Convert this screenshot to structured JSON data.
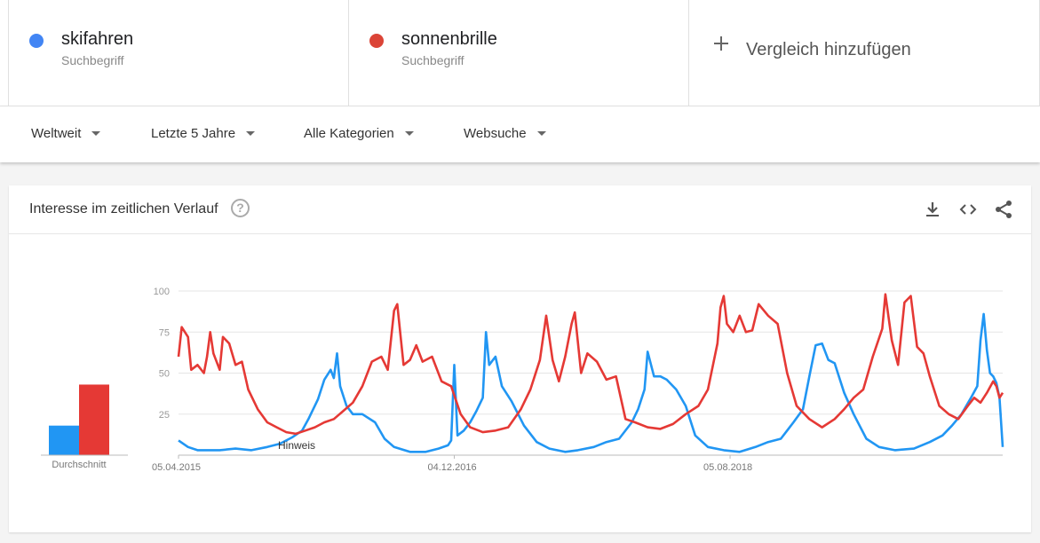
{
  "terms": [
    {
      "name": "skifahren",
      "sub": "Suchbegriff",
      "color": "#4285f4"
    },
    {
      "name": "sonnenbrille",
      "sub": "Suchbegriff",
      "color": "#db4437"
    }
  ],
  "add_compare": "Vergleich hinzufügen",
  "filters": {
    "region": "Weltweit",
    "time": "Letzte 5 Jahre",
    "category": "Alle Kategorien",
    "search_type": "Websuche"
  },
  "card": {
    "title": "Interesse im zeitlichen Verlauf",
    "help_glyph": "?",
    "icons": [
      "download-icon",
      "embed-icon",
      "share-icon"
    ]
  },
  "chart_data": {
    "type": "line",
    "title": "",
    "xlabel": "",
    "ylabel": "",
    "ylim": [
      0,
      100
    ],
    "yticks": [
      25,
      50,
      75,
      100
    ],
    "ytick_labels": [
      "25",
      "50",
      "75",
      "100"
    ],
    "x_tick_labels": [
      "05.04.2015",
      "04.12.2016",
      "05.08.2018"
    ],
    "x_tick_dates": [
      "2015-04-05",
      "2016-12-04",
      "2018-08-05"
    ],
    "x_start": "2015-04-05",
    "x_end": "2020-03-29",
    "grid": true,
    "annotation": "Hinweis",
    "averages": {
      "label": "Durchschnitt",
      "values": [
        {
          "name": "skifahren",
          "value": 18
        },
        {
          "name": "sonnenbrille",
          "value": 43
        }
      ]
    },
    "series": [
      {
        "name": "skifahren",
        "color": "#2196f3",
        "points": [
          [
            "2015-04-05",
            9
          ],
          [
            "2015-04-26",
            5
          ],
          [
            "2015-05-17",
            3
          ],
          [
            "2015-07-05",
            3
          ],
          [
            "2015-08-09",
            4
          ],
          [
            "2015-09-13",
            3
          ],
          [
            "2015-10-18",
            5
          ],
          [
            "2015-11-15",
            7
          ],
          [
            "2015-12-13",
            11
          ],
          [
            "2016-01-03",
            15
          ],
          [
            "2016-01-17",
            22
          ],
          [
            "2016-02-07",
            34
          ],
          [
            "2016-02-21",
            46
          ],
          [
            "2016-03-06",
            52
          ],
          [
            "2016-03-13",
            47
          ],
          [
            "2016-03-20",
            62
          ],
          [
            "2016-03-27",
            42
          ],
          [
            "2016-04-10",
            30
          ],
          [
            "2016-04-24",
            25
          ],
          [
            "2016-05-15",
            25
          ],
          [
            "2016-06-12",
            20
          ],
          [
            "2016-07-03",
            10
          ],
          [
            "2016-07-24",
            5
          ],
          [
            "2016-08-28",
            2
          ],
          [
            "2016-10-02",
            2
          ],
          [
            "2016-10-30",
            4
          ],
          [
            "2016-11-20",
            6
          ],
          [
            "2016-11-27",
            9
          ],
          [
            "2016-12-04",
            55
          ],
          [
            "2016-12-11",
            12
          ],
          [
            "2016-12-25",
            15
          ],
          [
            "2017-01-08",
            20
          ],
          [
            "2017-01-22",
            27
          ],
          [
            "2017-02-05",
            35
          ],
          [
            "2017-02-12",
            75
          ],
          [
            "2017-02-19",
            55
          ],
          [
            "2017-03-05",
            60
          ],
          [
            "2017-03-19",
            42
          ],
          [
            "2017-04-09",
            33
          ],
          [
            "2017-05-07",
            18
          ],
          [
            "2017-06-04",
            8
          ],
          [
            "2017-07-02",
            4
          ],
          [
            "2017-08-06",
            2
          ],
          [
            "2017-09-03",
            3
          ],
          [
            "2017-10-08",
            5
          ],
          [
            "2017-11-05",
            8
          ],
          [
            "2017-12-03",
            10
          ],
          [
            "2017-12-31",
            20
          ],
          [
            "2018-01-14",
            28
          ],
          [
            "2018-01-28",
            40
          ],
          [
            "2018-02-04",
            63
          ],
          [
            "2018-02-18",
            48
          ],
          [
            "2018-03-04",
            48
          ],
          [
            "2018-03-18",
            46
          ],
          [
            "2018-04-08",
            40
          ],
          [
            "2018-04-29",
            30
          ],
          [
            "2018-05-20",
            12
          ],
          [
            "2018-06-17",
            5
          ],
          [
            "2018-07-22",
            3
          ],
          [
            "2018-08-26",
            2
          ],
          [
            "2018-09-30",
            5
          ],
          [
            "2018-10-28",
            8
          ],
          [
            "2018-11-25",
            10
          ],
          [
            "2018-12-23",
            20
          ],
          [
            "2019-01-13",
            28
          ],
          [
            "2019-01-27",
            48
          ],
          [
            "2019-02-10",
            67
          ],
          [
            "2019-02-24",
            68
          ],
          [
            "2019-03-10",
            58
          ],
          [
            "2019-03-24",
            56
          ],
          [
            "2019-04-14",
            38
          ],
          [
            "2019-05-05",
            25
          ],
          [
            "2019-06-02",
            10
          ],
          [
            "2019-06-30",
            5
          ],
          [
            "2019-08-04",
            3
          ],
          [
            "2019-09-15",
            4
          ],
          [
            "2019-10-20",
            8
          ],
          [
            "2019-11-17",
            12
          ],
          [
            "2019-12-08",
            18
          ],
          [
            "2019-12-29",
            25
          ],
          [
            "2020-01-19",
            35
          ],
          [
            "2020-02-02",
            42
          ],
          [
            "2020-02-09",
            70
          ],
          [
            "2020-02-16",
            86
          ],
          [
            "2020-02-23",
            64
          ],
          [
            "2020-03-01",
            50
          ],
          [
            "2020-03-08",
            48
          ],
          [
            "2020-03-15",
            44
          ],
          [
            "2020-03-22",
            35
          ],
          [
            "2020-03-29",
            5
          ]
        ]
      },
      {
        "name": "sonnenbrille",
        "color": "#e53935",
        "points": [
          [
            "2015-04-05",
            60
          ],
          [
            "2015-04-12",
            78
          ],
          [
            "2015-04-26",
            72
          ],
          [
            "2015-05-03",
            52
          ],
          [
            "2015-05-17",
            55
          ],
          [
            "2015-05-31",
            50
          ],
          [
            "2015-06-07",
            60
          ],
          [
            "2015-06-14",
            75
          ],
          [
            "2015-06-21",
            62
          ],
          [
            "2015-07-05",
            52
          ],
          [
            "2015-07-12",
            72
          ],
          [
            "2015-07-26",
            68
          ],
          [
            "2015-08-09",
            55
          ],
          [
            "2015-08-23",
            57
          ],
          [
            "2015-09-06",
            40
          ],
          [
            "2015-09-27",
            28
          ],
          [
            "2015-10-18",
            20
          ],
          [
            "2015-11-08",
            17
          ],
          [
            "2015-11-29",
            14
          ],
          [
            "2015-12-20",
            13
          ],
          [
            "2016-01-10",
            15
          ],
          [
            "2016-01-31",
            17
          ],
          [
            "2016-02-21",
            20
          ],
          [
            "2016-03-13",
            22
          ],
          [
            "2016-04-03",
            27
          ],
          [
            "2016-04-24",
            32
          ],
          [
            "2016-05-15",
            42
          ],
          [
            "2016-06-05",
            57
          ],
          [
            "2016-06-26",
            60
          ],
          [
            "2016-07-10",
            52
          ],
          [
            "2016-07-24",
            88
          ],
          [
            "2016-07-31",
            92
          ],
          [
            "2016-08-14",
            55
          ],
          [
            "2016-08-28",
            58
          ],
          [
            "2016-09-11",
            67
          ],
          [
            "2016-09-25",
            57
          ],
          [
            "2016-10-16",
            60
          ],
          [
            "2016-11-06",
            45
          ],
          [
            "2016-11-27",
            42
          ],
          [
            "2016-12-18",
            25
          ],
          [
            "2017-01-08",
            17
          ],
          [
            "2017-02-05",
            14
          ],
          [
            "2017-03-05",
            15
          ],
          [
            "2017-04-02",
            17
          ],
          [
            "2017-04-30",
            28
          ],
          [
            "2017-05-21",
            40
          ],
          [
            "2017-06-11",
            58
          ],
          [
            "2017-06-25",
            85
          ],
          [
            "2017-07-09",
            58
          ],
          [
            "2017-07-23",
            45
          ],
          [
            "2017-08-06",
            60
          ],
          [
            "2017-08-20",
            80
          ],
          [
            "2017-08-27",
            87
          ],
          [
            "2017-09-10",
            50
          ],
          [
            "2017-09-24",
            62
          ],
          [
            "2017-10-15",
            57
          ],
          [
            "2017-11-05",
            46
          ],
          [
            "2017-11-26",
            48
          ],
          [
            "2017-12-17",
            22
          ],
          [
            "2018-01-07",
            20
          ],
          [
            "2018-02-04",
            17
          ],
          [
            "2018-03-04",
            16
          ],
          [
            "2018-04-01",
            19
          ],
          [
            "2018-04-29",
            25
          ],
          [
            "2018-05-27",
            30
          ],
          [
            "2018-06-17",
            40
          ],
          [
            "2018-07-08",
            68
          ],
          [
            "2018-07-15",
            90
          ],
          [
            "2018-07-22",
            97
          ],
          [
            "2018-07-29",
            80
          ],
          [
            "2018-08-12",
            75
          ],
          [
            "2018-08-26",
            85
          ],
          [
            "2018-09-09",
            75
          ],
          [
            "2018-09-23",
            76
          ],
          [
            "2018-10-07",
            92
          ],
          [
            "2018-10-28",
            85
          ],
          [
            "2018-11-18",
            80
          ],
          [
            "2018-12-09",
            50
          ],
          [
            "2018-12-30",
            30
          ],
          [
            "2019-01-27",
            22
          ],
          [
            "2019-02-24",
            17
          ],
          [
            "2019-03-24",
            22
          ],
          [
            "2019-04-14",
            28
          ],
          [
            "2019-05-05",
            35
          ],
          [
            "2019-05-26",
            40
          ],
          [
            "2019-06-16",
            60
          ],
          [
            "2019-07-07",
            77
          ],
          [
            "2019-07-14",
            98
          ],
          [
            "2019-07-28",
            70
          ],
          [
            "2019-08-11",
            55
          ],
          [
            "2019-08-25",
            93
          ],
          [
            "2019-09-08",
            97
          ],
          [
            "2019-09-22",
            66
          ],
          [
            "2019-10-06",
            62
          ],
          [
            "2019-10-20",
            48
          ],
          [
            "2019-11-10",
            30
          ],
          [
            "2019-12-01",
            25
          ],
          [
            "2019-12-22",
            22
          ],
          [
            "2020-01-12",
            30
          ],
          [
            "2020-01-26",
            35
          ],
          [
            "2020-02-09",
            32
          ],
          [
            "2020-02-23",
            38
          ],
          [
            "2020-03-08",
            45
          ],
          [
            "2020-03-15",
            42
          ],
          [
            "2020-03-22",
            35
          ],
          [
            "2020-03-29",
            38
          ]
        ]
      }
    ]
  }
}
